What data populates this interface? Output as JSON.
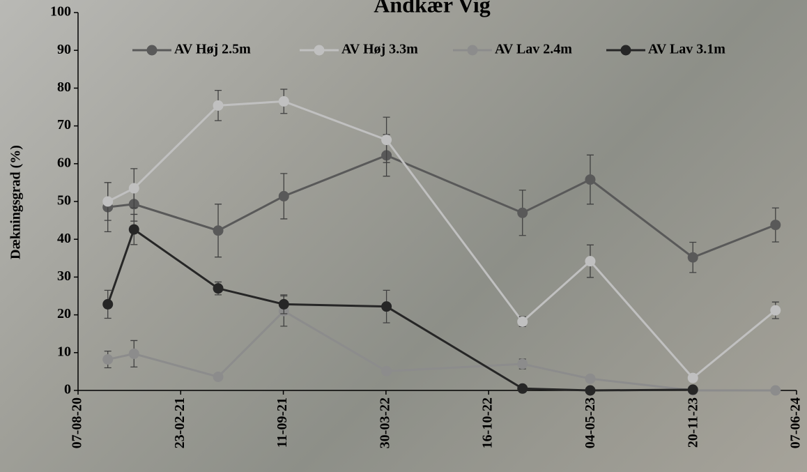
{
  "chart_data": {
    "type": "line",
    "title": "Andkær Vig",
    "y_label": "Dækningsgrad (%)",
    "x": [
      "04-10-20",
      "24-11-20",
      "07-05-21",
      "12-09-21",
      "31-03-22",
      "21-12-22",
      "02-05-23",
      "18-11-23",
      "27-04-24"
    ],
    "xlim": [
      "07-08-20",
      "07-06-24"
    ],
    "xticks": [
      "07-08-20",
      "23-02-21",
      "11-09-21",
      "30-03-22",
      "16-10-22",
      "04-05-23",
      "20-11-23",
      "07-06-24"
    ],
    "ylim": [
      0,
      100
    ],
    "yticks": [
      0,
      10,
      20,
      30,
      40,
      50,
      60,
      70,
      80,
      90,
      100
    ],
    "legend": "top",
    "series": [
      {
        "name": "AV Høj 2.5m",
        "color": "#595959",
        "values": [
          48.5,
          49.3,
          42.3,
          51.4,
          62.2,
          47,
          55.8,
          35.2,
          43.8
        ],
        "errors": [
          6.5,
          4.5,
          7,
          6,
          5.5,
          6,
          6.5,
          4,
          4.5
        ]
      },
      {
        "name": "AV Høj 3.3m",
        "color": "#c0c0c0",
        "values": [
          50,
          53.5,
          75.4,
          76.5,
          66.3,
          18.2,
          34.2,
          3.3,
          21.2
        ],
        "errors": [
          5,
          5.2,
          4,
          3.2,
          6,
          1.3,
          4.3,
          0,
          2.2
        ]
      },
      {
        "name": "AV Lav 2.4m",
        "color": "#8c8c8c",
        "values": [
          8.2,
          9.7,
          3.6,
          21,
          5.1,
          7,
          3.1,
          0,
          0
        ],
        "errors": [
          2.2,
          3.5,
          0.5,
          4,
          0,
          1.3,
          0,
          0,
          0
        ]
      },
      {
        "name": "AV Lav 3.1m",
        "color": "#262626",
        "values": [
          22.8,
          42.6,
          27,
          22.8,
          22.2,
          0.5,
          0,
          0.2,
          null
        ],
        "errors": [
          3.7,
          4,
          1.7,
          2.5,
          4.3,
          0,
          0,
          0,
          null
        ]
      }
    ]
  }
}
